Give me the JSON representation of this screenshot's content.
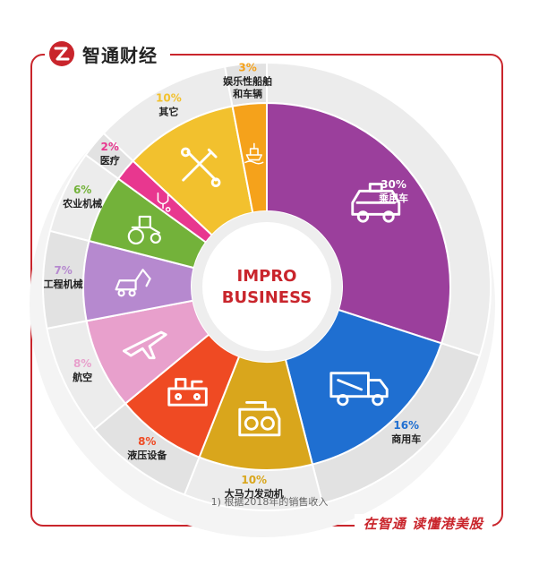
{
  "brand": {
    "name": "智通财经",
    "slogan": "在智通  读懂港美股"
  },
  "center": {
    "line1": "IMPRO",
    "line2": "BUSINESS"
  },
  "footnote": "1) 根据2018年的销售收入",
  "chart_data": {
    "type": "pie",
    "style": "donut",
    "categories": [
      "乘用车",
      "商用车",
      "大马力发动机",
      "液压设备",
      "航空",
      "工程机械",
      "农业机械",
      "医疗",
      "其它",
      "娱乐性船舶和车辆"
    ],
    "values": [
      30,
      16,
      10,
      8,
      8,
      7,
      6,
      2,
      10,
      3
    ],
    "value_labels": [
      "30%",
      "16%",
      "10%",
      "8%",
      "8%",
      "7%",
      "6%",
      "2%",
      "10%",
      "3%"
    ],
    "label_lines": [
      [
        "乘用车"
      ],
      [
        "商用车"
      ],
      [
        "大马力发动机"
      ],
      [
        "液压设备"
      ],
      [
        "航空"
      ],
      [
        "工程机械"
      ],
      [
        "农业机械"
      ],
      [
        "医疗"
      ],
      [
        "其它"
      ],
      [
        "娱乐性船舶",
        "和车辆"
      ]
    ],
    "colors": [
      "#9b3f9c",
      "#1f6fd1",
      "#d9a61c",
      "#ef4a23",
      "#e8a0cc",
      "#b689cf",
      "#73b23a",
      "#e8378f",
      "#f2c12e",
      "#f5a21b"
    ],
    "icons": [
      "car-icon",
      "truck-icon",
      "engine-icon",
      "hydraulic-icon",
      "airplane-icon",
      "excavator-icon",
      "tractor-icon",
      "stethoscope-icon",
      "tools-icon",
      "ship-icon"
    ],
    "label_color": "#222222",
    "percent_color_by_slice": true
  }
}
